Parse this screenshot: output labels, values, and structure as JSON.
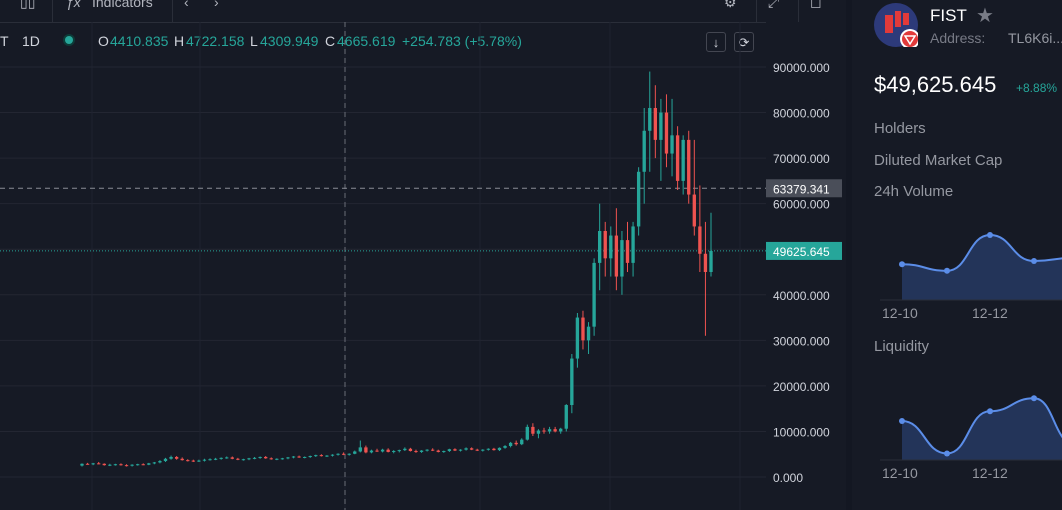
{
  "toolbar": {
    "indicators_label": "Indicators"
  },
  "legend": {
    "symbol_suffix": "T",
    "interval": "1D",
    "open_key": "O",
    "open": "4410.835",
    "high_key": "H",
    "high": "4722.158",
    "low_key": "L",
    "low": "4309.949",
    "close_key": "C",
    "close": "4665.619",
    "change": "+254.783 (+5.78%)"
  },
  "price_axis": {
    "ticks": [
      "90000.000",
      "80000.000",
      "70000.000",
      "60000.000",
      "50000.000",
      "40000.000",
      "30000.000",
      "20000.000",
      "10000.000",
      "0.000"
    ],
    "crosshair_label": "63379.341",
    "last_price_label": "49625.645"
  },
  "chart_data": {
    "type": "candlestick",
    "y_unit": "price",
    "ylim": [
      0,
      90000
    ],
    "crosshair_price": 63379.341,
    "last_price": 49625.645,
    "colors": {
      "up": "#26a69a",
      "down": "#ef5350"
    },
    "candles": [
      [
        2500,
        3000,
        2300,
        2900
      ],
      [
        2900,
        3100,
        2700,
        2800
      ],
      [
        2800,
        3100,
        2600,
        3000
      ],
      [
        3000,
        3300,
        2800,
        2900
      ],
      [
        2900,
        3000,
        2500,
        2600
      ],
      [
        2600,
        2900,
        2400,
        2700
      ],
      [
        2700,
        2900,
        2500,
        2800
      ],
      [
        2800,
        3000,
        2500,
        2600
      ],
      [
        2600,
        2800,
        2300,
        2500
      ],
      [
        2500,
        2800,
        2300,
        2700
      ],
      [
        2700,
        2900,
        2500,
        2800
      ],
      [
        2800,
        3000,
        2600,
        2700
      ],
      [
        2700,
        3100,
        2600,
        3000
      ],
      [
        3000,
        3300,
        2800,
        3200
      ],
      [
        3200,
        3700,
        3000,
        3500
      ],
      [
        3500,
        4200,
        3300,
        4000
      ],
      [
        4000,
        4700,
        3800,
        4400
      ],
      [
        4400,
        4600,
        3800,
        4000
      ],
      [
        4000,
        4300,
        3600,
        3700
      ],
      [
        3700,
        3900,
        3400,
        3600
      ],
      [
        3600,
        3800,
        3300,
        3500
      ],
      [
        3500,
        3800,
        3300,
        3600
      ],
      [
        3600,
        4000,
        3400,
        3800
      ],
      [
        3800,
        4100,
        3600,
        3900
      ],
      [
        3900,
        4200,
        3700,
        4000
      ],
      [
        4000,
        4300,
        3800,
        4200
      ],
      [
        4200,
        4500,
        4000,
        4300
      ],
      [
        4300,
        4500,
        3900,
        4000
      ],
      [
        4000,
        4200,
        3700,
        3800
      ],
      [
        3800,
        4000,
        3600,
        3900
      ],
      [
        3900,
        4200,
        3700,
        4100
      ],
      [
        4100,
        4400,
        3900,
        4200
      ],
      [
        4200,
        4500,
        4000,
        4400
      ],
      [
        4400,
        4600,
        4000,
        4100
      ],
      [
        4100,
        4300,
        3800,
        3900
      ],
      [
        3900,
        4100,
        3700,
        4000
      ],
      [
        4000,
        4200,
        3800,
        4100
      ],
      [
        4100,
        4400,
        3900,
        4300
      ],
      [
        4300,
        4600,
        4100,
        4500
      ],
      [
        4500,
        4700,
        4200,
        4300
      ],
      [
        4300,
        4500,
        4100,
        4400
      ],
      [
        4400,
        4700,
        4200,
        4600
      ],
      [
        4600,
        4900,
        4400,
        4800
      ],
      [
        4800,
        5000,
        4500,
        4600
      ],
      [
        4600,
        4800,
        4400,
        4700
      ],
      [
        4700,
        5000,
        4500,
        4900
      ],
      [
        4900,
        5200,
        4700,
        5100
      ],
      [
        5100,
        5400,
        4800,
        4900
      ],
      [
        4900,
        5200,
        4700,
        5100
      ],
      [
        5100,
        5800,
        5000,
        5600
      ],
      [
        5600,
        8000,
        5400,
        6500
      ],
      [
        6500,
        6900,
        5200,
        5400
      ],
      [
        5400,
        6000,
        5200,
        5800
      ],
      [
        5800,
        6200,
        5500,
        5600
      ],
      [
        5600,
        6200,
        5400,
        6000
      ],
      [
        6000,
        6300,
        5400,
        5500
      ],
      [
        5500,
        5900,
        5200,
        5700
      ],
      [
        5700,
        6000,
        5400,
        5900
      ],
      [
        5900,
        6500,
        5700,
        6200
      ],
      [
        6200,
        6400,
        5600,
        5700
      ],
      [
        5700,
        6000,
        5300,
        5500
      ],
      [
        5500,
        5900,
        5300,
        5800
      ],
      [
        5800,
        6100,
        5600,
        6000
      ],
      [
        6000,
        6300,
        5700,
        5800
      ],
      [
        5800,
        6000,
        5400,
        5500
      ],
      [
        5500,
        5800,
        5300,
        5700
      ],
      [
        5700,
        6200,
        5500,
        6100
      ],
      [
        6100,
        6300,
        5700,
        5800
      ],
      [
        5800,
        6100,
        5600,
        6000
      ],
      [
        6000,
        6500,
        5800,
        6300
      ],
      [
        6300,
        6500,
        5900,
        6000
      ],
      [
        6000,
        6200,
        5700,
        5800
      ],
      [
        5800,
        6100,
        5600,
        6000
      ],
      [
        6000,
        6300,
        5800,
        6200
      ],
      [
        6200,
        6400,
        5800,
        5900
      ],
      [
        5900,
        6500,
        5700,
        6400
      ],
      [
        6400,
        7000,
        6200,
        6800
      ],
      [
        6800,
        7700,
        6500,
        7500
      ],
      [
        7500,
        8000,
        6900,
        7200
      ],
      [
        7200,
        8500,
        7000,
        8200
      ],
      [
        8200,
        11500,
        8000,
        11000
      ],
      [
        11000,
        11800,
        9000,
        9500
      ],
      [
        9500,
        10500,
        8500,
        10200
      ],
      [
        10200,
        10800,
        9500,
        10000
      ],
      [
        10000,
        11000,
        9500,
        10500
      ],
      [
        10500,
        11000,
        9800,
        10000
      ],
      [
        10000,
        10800,
        9500,
        10600
      ],
      [
        10600,
        16000,
        10000,
        15800
      ],
      [
        15800,
        27000,
        14000,
        26000
      ],
      [
        26000,
        36000,
        24000,
        35000
      ],
      [
        35000,
        36500,
        28000,
        30000
      ],
      [
        30000,
        34000,
        27000,
        33000
      ],
      [
        33000,
        48000,
        31000,
        47000
      ],
      [
        47000,
        60000,
        41000,
        54000
      ],
      [
        54000,
        56000,
        44000,
        48000
      ],
      [
        48000,
        55000,
        44000,
        53000
      ],
      [
        53000,
        59000,
        41000,
        44000
      ],
      [
        44000,
        54000,
        40000,
        52000
      ],
      [
        52000,
        56000,
        45000,
        47000
      ],
      [
        47000,
        56000,
        44000,
        55000
      ],
      [
        55000,
        68000,
        53000,
        67000
      ],
      [
        67000,
        81000,
        60000,
        76000
      ],
      [
        76000,
        89000,
        67000,
        81000
      ],
      [
        81000,
        86000,
        70000,
        74000
      ],
      [
        74000,
        83000,
        65000,
        80000
      ],
      [
        80000,
        84000,
        68000,
        71000
      ],
      [
        71000,
        83000,
        66000,
        75000
      ],
      [
        75000,
        77000,
        63000,
        65000
      ],
      [
        65000,
        75000,
        62000,
        74000
      ],
      [
        74000,
        76000,
        60000,
        62000
      ],
      [
        62000,
        74000,
        53000,
        55000
      ],
      [
        55000,
        64000,
        45000,
        49000
      ],
      [
        49000,
        56000,
        31000,
        45000
      ],
      [
        45000,
        58000,
        44000,
        49625.645
      ]
    ]
  },
  "token": {
    "name": "FIST",
    "address_label": "Address:",
    "address_value": "TL6K6i...",
    "price": "$49,625.645",
    "change": "+8.88%",
    "holders_label": "Holders",
    "diluted_label": "Diluted Market Cap",
    "volume_label": "24h Volume",
    "liquidity_label": "Liquidity"
  },
  "mini_volume": {
    "dates": [
      "12-10",
      "12-12"
    ],
    "values": [
      0.55,
      0.45,
      1.0,
      0.6,
      0.65
    ]
  },
  "mini_liquidity": {
    "dates": [
      "12-10",
      "12-10"
    ],
    "labels": [
      "12-10",
      "12-12"
    ],
    "values": [
      0.6,
      0.1,
      0.75,
      0.95,
      0.25
    ]
  },
  "colors": {
    "background": "#161a25",
    "up": "#26a69a",
    "down": "#ef5350",
    "line": "#5b8de8",
    "star": "#787b86"
  }
}
